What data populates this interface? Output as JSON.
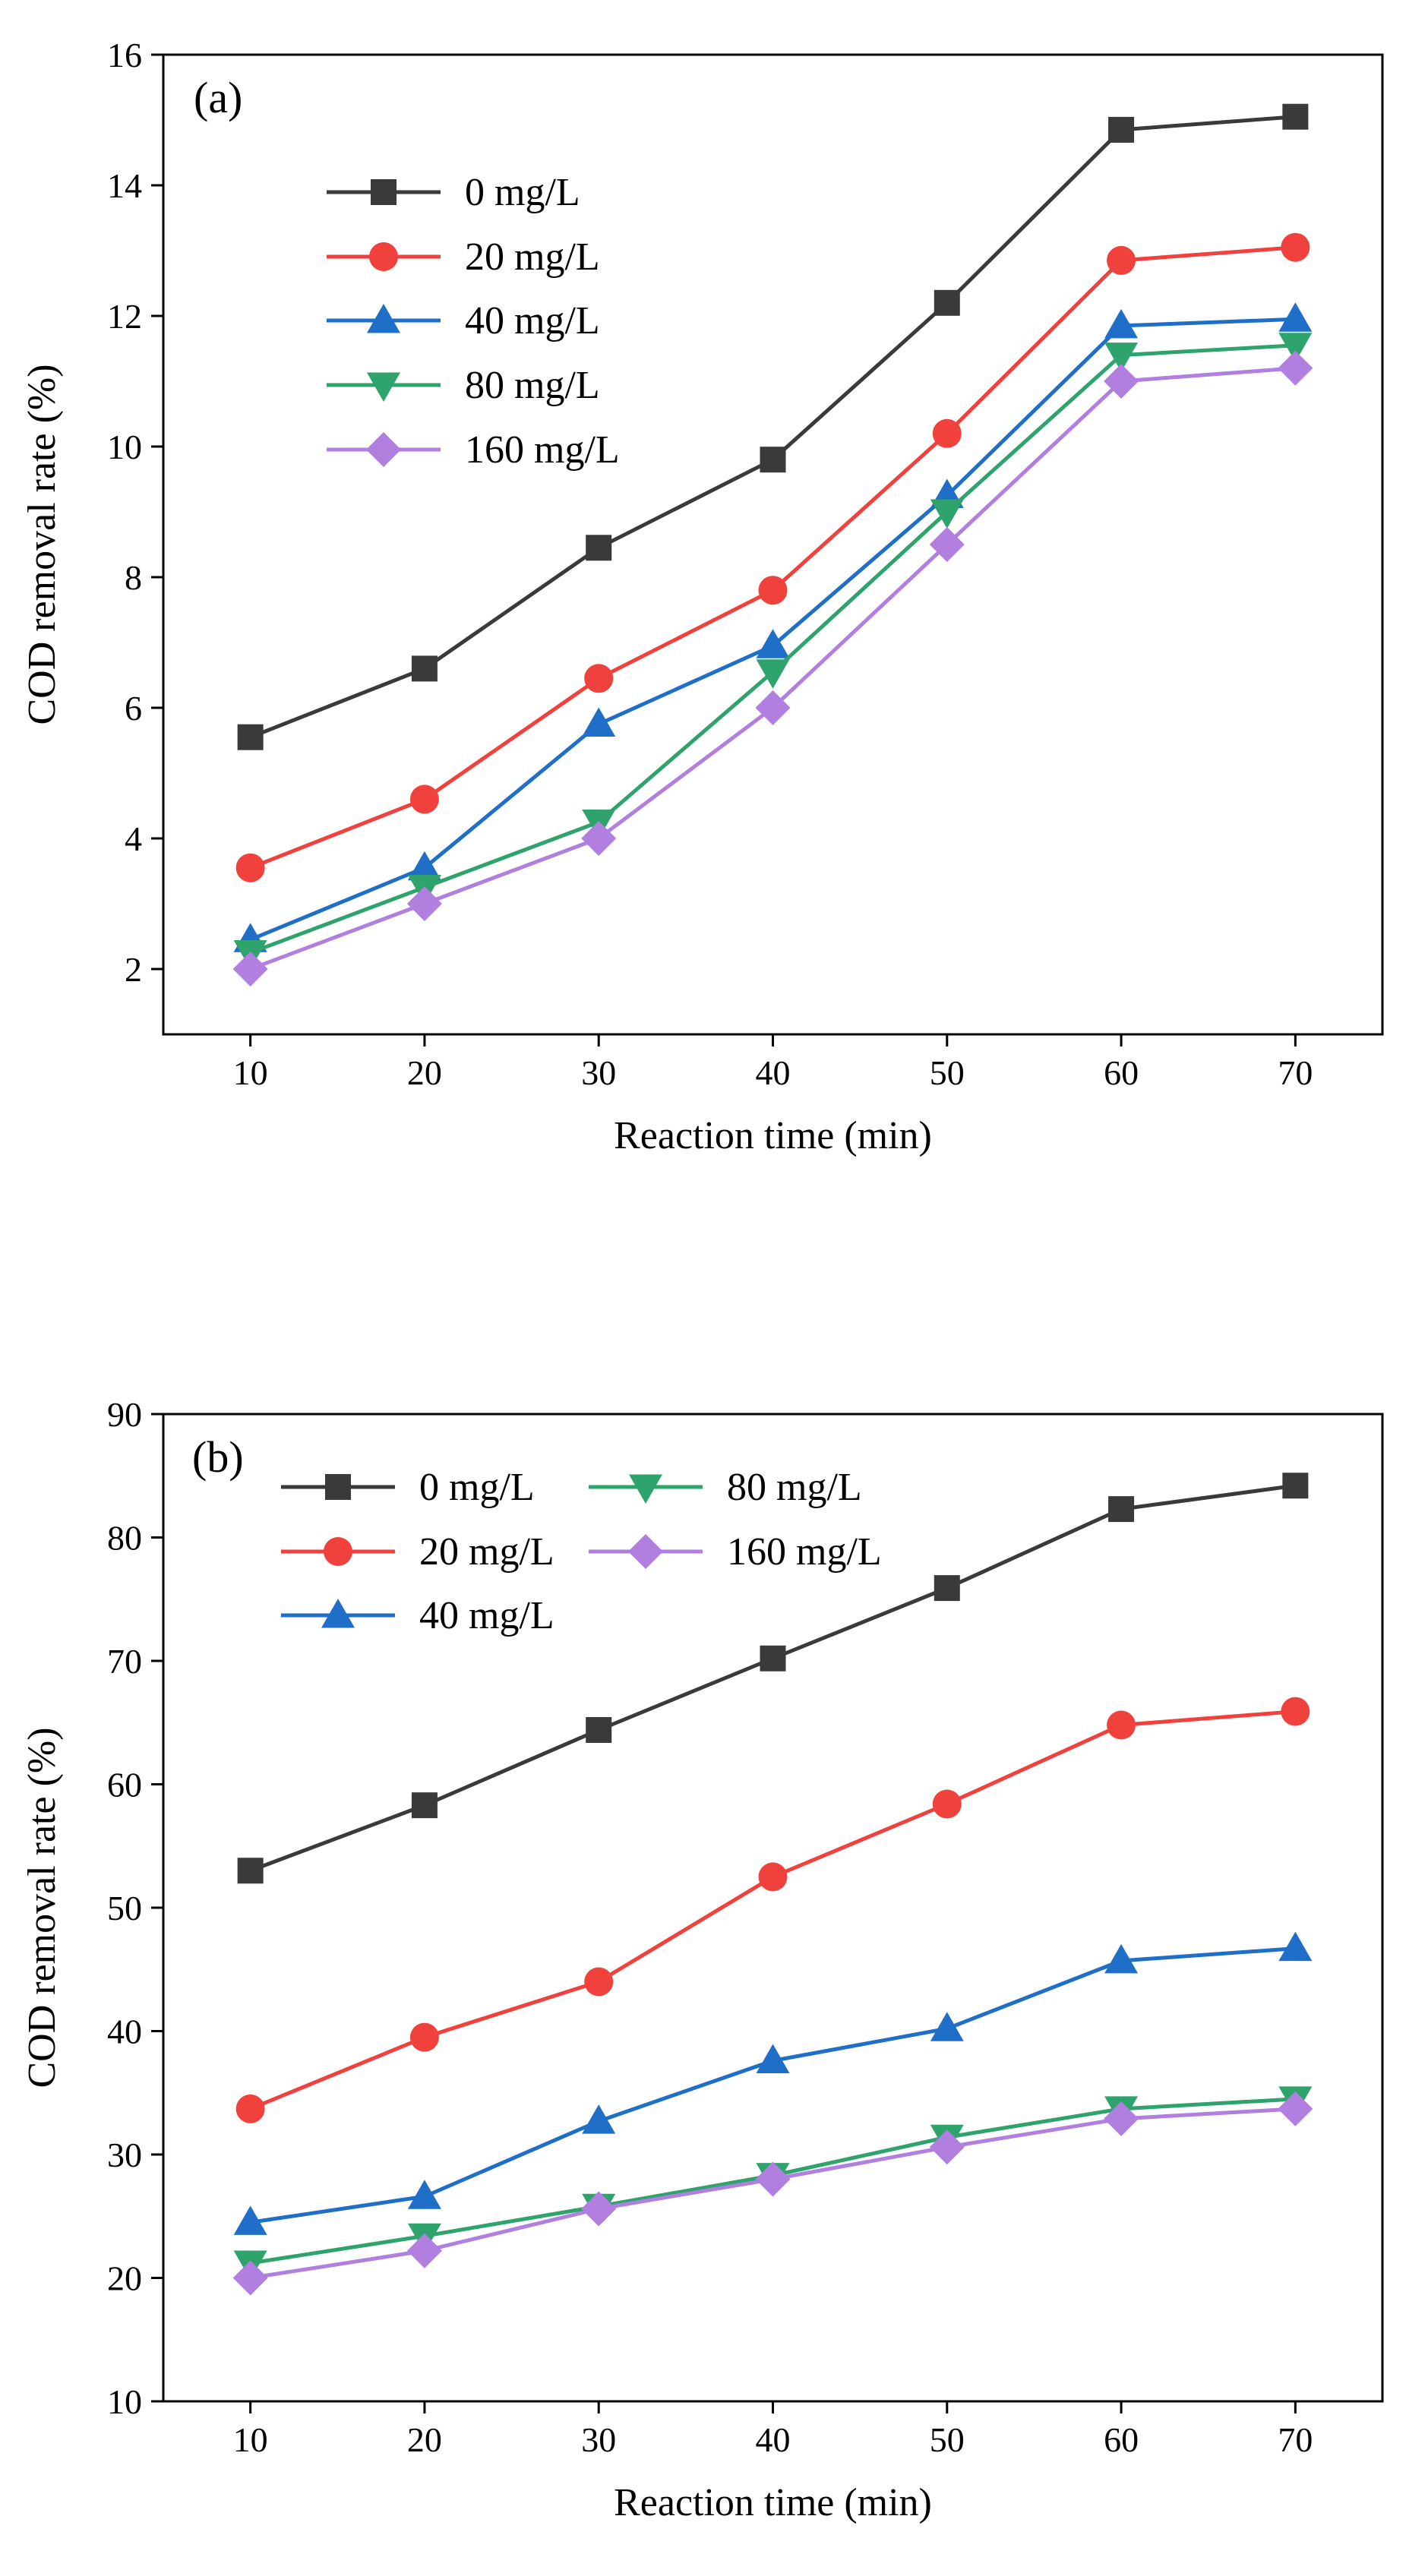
{
  "chart_data": [
    {
      "type": "line",
      "panel_label": "(a)",
      "title": "",
      "xlabel": "Reaction time (min)",
      "ylabel": "COD removal rate (%)",
      "x": [
        10,
        20,
        30,
        40,
        50,
        60,
        70
      ],
      "xlim": [
        5,
        75
      ],
      "ylim": [
        1,
        16
      ],
      "xticks": [
        10,
        20,
        30,
        40,
        50,
        60,
        70
      ],
      "yticks": [
        2,
        4,
        6,
        8,
        10,
        12,
        14,
        16
      ],
      "grid": false,
      "legend_position": "top-left",
      "series": [
        {
          "name": "0 mg/L",
          "color": "#3a3a3a",
          "marker": "square",
          "values": [
            5.55,
            6.6,
            8.45,
            9.8,
            12.2,
            14.85,
            15.05
          ]
        },
        {
          "name": "20 mg/L",
          "color": "#f0413c",
          "marker": "circle",
          "values": [
            3.55,
            4.6,
            6.45,
            7.8,
            10.2,
            12.85,
            13.05
          ]
        },
        {
          "name": "40 mg/L",
          "color": "#1f6fc8",
          "marker": "triangle-up",
          "values": [
            2.45,
            3.55,
            5.75,
            6.95,
            9.25,
            11.85,
            11.95
          ]
        },
        {
          "name": "80 mg/L",
          "color": "#2ea36c",
          "marker": "triangle-down",
          "values": [
            2.25,
            3.25,
            4.25,
            6.55,
            9.0,
            11.4,
            11.55
          ]
        },
        {
          "name": "160 mg/L",
          "color": "#b07fe0",
          "marker": "diamond",
          "values": [
            2.0,
            3.0,
            4.0,
            6.0,
            8.5,
            11.0,
            11.2
          ]
        }
      ]
    },
    {
      "type": "line",
      "panel_label": "(b)",
      "title": "",
      "xlabel": "Reaction time (min)",
      "ylabel": "COD removal rate (%)",
      "x": [
        10,
        20,
        30,
        40,
        50,
        60,
        70
      ],
      "xlim": [
        5,
        75
      ],
      "ylim": [
        10,
        90
      ],
      "xticks": [
        10,
        20,
        30,
        40,
        50,
        60,
        70
      ],
      "yticks": [
        10,
        20,
        30,
        40,
        50,
        60,
        70,
        80,
        90
      ],
      "grid": false,
      "legend_position": "top",
      "series": [
        {
          "name": "0 mg/L",
          "color": "#3a3a3a",
          "marker": "square",
          "values": [
            53.0,
            58.3,
            64.4,
            70.2,
            75.9,
            82.3,
            84.2
          ]
        },
        {
          "name": "20 mg/L",
          "color": "#f0413c",
          "marker": "circle",
          "values": [
            33.7,
            39.5,
            44.0,
            52.5,
            58.4,
            64.8,
            65.9
          ]
        },
        {
          "name": "40 mg/L",
          "color": "#1f6fc8",
          "marker": "triangle-up",
          "values": [
            24.5,
            26.6,
            32.7,
            37.6,
            40.2,
            45.7,
            46.7
          ]
        },
        {
          "name": "80 mg/L",
          "color": "#2ea36c",
          "marker": "triangle-down",
          "values": [
            21.2,
            23.4,
            25.8,
            28.3,
            31.4,
            33.7,
            34.5
          ]
        },
        {
          "name": "160 mg/L",
          "color": "#b07fe0",
          "marker": "diamond",
          "values": [
            20.0,
            22.2,
            25.6,
            28.0,
            30.6,
            32.9,
            33.7
          ]
        }
      ]
    }
  ]
}
